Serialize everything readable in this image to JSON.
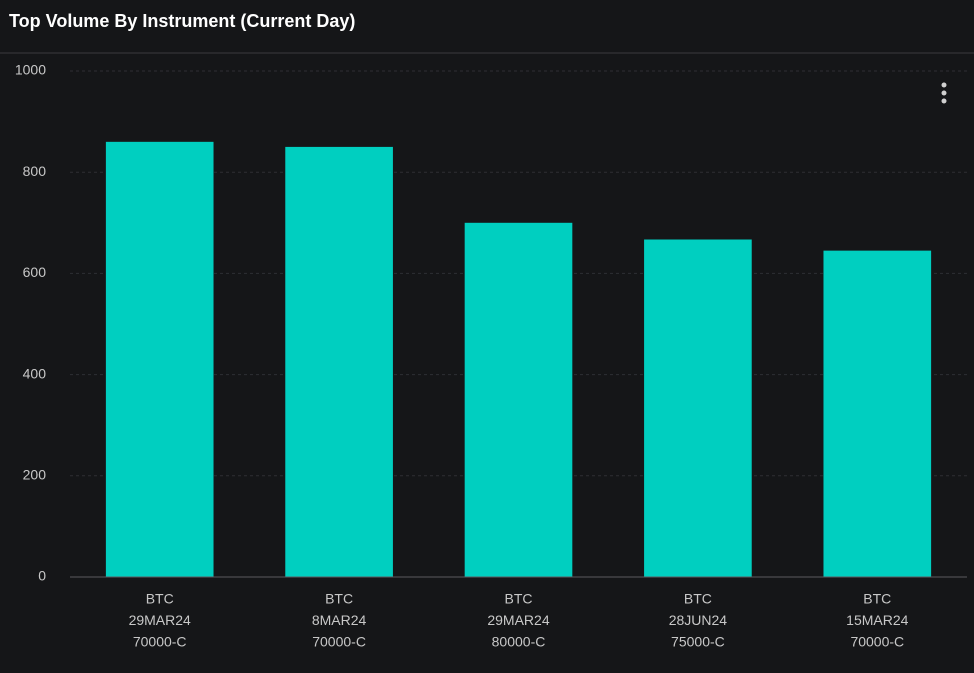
{
  "chart_data": {
    "type": "bar",
    "title": "Top Volume By Instrument (Current Day)",
    "categories": [
      [
        "BTC",
        "29MAR24",
        "70000-C"
      ],
      [
        "BTC",
        "8MAR24",
        "70000-C"
      ],
      [
        "BTC",
        "29MAR24",
        "80000-C"
      ],
      [
        "BTC",
        "28JUN24",
        "75000-C"
      ],
      [
        "BTC",
        "15MAR24",
        "70000-C"
      ]
    ],
    "values": [
      860,
      850,
      700,
      667,
      645
    ],
    "color": "#00cfc0",
    "ylim": [
      0,
      1000
    ],
    "yticks": [
      0,
      200,
      400,
      600,
      800,
      1000
    ],
    "grid": true
  }
}
